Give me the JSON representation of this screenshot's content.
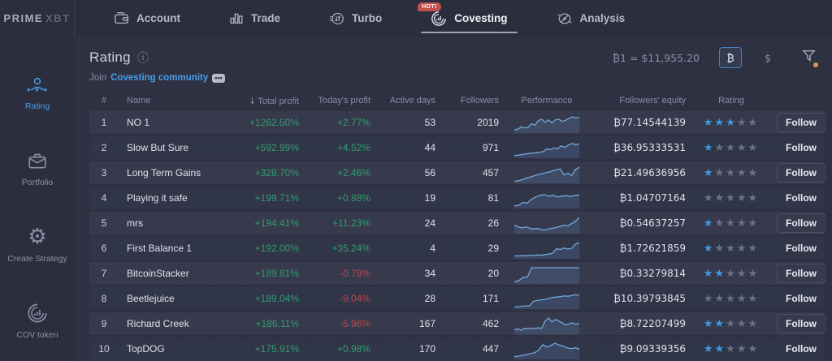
{
  "brand": {
    "name": "PRIME",
    "suffix": "XBT"
  },
  "nav": {
    "tabs": [
      {
        "label": "Account",
        "icon": "wallet-icon",
        "active": false
      },
      {
        "label": "Trade",
        "icon": "bars-icon",
        "active": false
      },
      {
        "label": "Turbo",
        "icon": "turbo-icon",
        "active": false
      },
      {
        "label": "Covesting",
        "icon": "covesting-icon",
        "active": true,
        "badge": "HOT!"
      },
      {
        "label": "Analysis",
        "icon": "compass-icon",
        "active": false
      }
    ]
  },
  "sidebar": {
    "items": [
      {
        "label": "Rating",
        "icon": "user-stars-icon",
        "active": true
      },
      {
        "label": "Portfolio",
        "icon": "briefcase-icon",
        "active": false
      },
      {
        "label": "Create Strategy",
        "icon": "gear-icon",
        "active": false
      },
      {
        "label": "COV token",
        "icon": "cov-token-icon",
        "active": false
      }
    ]
  },
  "header": {
    "title": "Rating",
    "info_icon": "ⓘ",
    "join_prefix": "Join",
    "join_link": "Covesting community",
    "rate_label": "₿1 = $11,955.20",
    "currency_btc": "₿",
    "currency_usd": "$"
  },
  "table": {
    "columns": [
      {
        "label": "#"
      },
      {
        "label": "Name"
      },
      {
        "label": "Total profit",
        "sorted": true,
        "sort_icon": "↓"
      },
      {
        "label": "Today's profit"
      },
      {
        "label": "Active days"
      },
      {
        "label": "Followers"
      },
      {
        "label": "Performance"
      },
      {
        "label": "Followers' equity"
      },
      {
        "label": "Rating"
      },
      {
        "label": ""
      }
    ],
    "follow_label": "Follow",
    "rows": [
      {
        "rank": "1",
        "name": "NO 1",
        "total_profit": "+1262.50%",
        "todays_profit": "+2.77%",
        "active_days": "53",
        "followers": "2019",
        "equity": "₿77.14544139",
        "rating": 3,
        "performance": [
          0.15,
          0.2,
          0.35,
          0.28,
          0.3,
          0.55,
          0.45,
          0.75,
          0.85,
          0.65,
          0.8,
          0.6,
          0.8,
          0.85,
          0.7,
          0.78,
          0.9,
          1.0,
          0.92,
          0.95
        ]
      },
      {
        "rank": "2",
        "name": "Slow But Sure",
        "total_profit": "+592.99%",
        "todays_profit": "+4.52%",
        "active_days": "44",
        "followers": "971",
        "equity": "₿36.95333531",
        "rating": 1,
        "performance": [
          0.12,
          0.14,
          0.18,
          0.22,
          0.25,
          0.28,
          0.3,
          0.33,
          0.38,
          0.55,
          0.5,
          0.62,
          0.55,
          0.75,
          0.65,
          0.8,
          0.9,
          0.82,
          0.88
        ]
      },
      {
        "rank": "3",
        "name": "Long Term Gains",
        "total_profit": "+328.70%",
        "todays_profit": "+2.46%",
        "active_days": "56",
        "followers": "457",
        "equity": "₿21.49636956",
        "rating": 1,
        "performance": [
          0.08,
          0.12,
          0.18,
          0.28,
          0.35,
          0.42,
          0.5,
          0.55,
          0.62,
          0.68,
          0.75,
          0.82,
          0.88,
          0.5,
          0.6,
          0.45,
          0.85,
          1.0
        ]
      },
      {
        "rank": "4",
        "name": "Playing it safe",
        "total_profit": "+199.71%",
        "todays_profit": "+0.88%",
        "active_days": "19",
        "followers": "81",
        "equity": "₿1.04707164",
        "rating": 0,
        "performance": [
          0.12,
          0.15,
          0.35,
          0.3,
          0.55,
          0.7,
          0.8,
          0.85,
          0.75,
          0.8,
          0.7,
          0.75,
          0.78,
          0.72,
          0.8,
          0.82
        ]
      },
      {
        "rank": "5",
        "name": "mrs",
        "total_profit": "+194.41%",
        "todays_profit": "+11.23%",
        "active_days": "24",
        "followers": "26",
        "equity": "₿0.54637257",
        "rating": 1,
        "performance": [
          0.5,
          0.38,
          0.32,
          0.38,
          0.3,
          0.25,
          0.28,
          0.22,
          0.18,
          0.25,
          0.3,
          0.35,
          0.42,
          0.5,
          0.45,
          0.6,
          0.75,
          1.0
        ]
      },
      {
        "rank": "6",
        "name": "First Balance 1",
        "total_profit": "+192.00%",
        "todays_profit": "+35.24%",
        "active_days": "4",
        "followers": "29",
        "equity": "₿1.72621859",
        "rating": 1,
        "performance": [
          0.15,
          0.13,
          0.16,
          0.14,
          0.18,
          0.16,
          0.2,
          0.18,
          0.22,
          0.25,
          0.3,
          0.6,
          0.55,
          0.65,
          0.58,
          0.62,
          0.9,
          1.0
        ]
      },
      {
        "rank": "7",
        "name": "BitcoinStacker",
        "total_profit": "+189.81%",
        "todays_profit": "-0.79%",
        "active_days": "34",
        "followers": "20",
        "equity": "₿0.33279814",
        "rating": 2,
        "performance": [
          0.1,
          0.15,
          0.38,
          0.38,
          1.0,
          1.0,
          1.0,
          1.0,
          1.0,
          1.0,
          1.0,
          1.0,
          1.0,
          1.0,
          1.0,
          1.0
        ]
      },
      {
        "rank": "8",
        "name": "Beetlejuice",
        "total_profit": "+189.04%",
        "todays_profit": "-9.04%",
        "active_days": "28",
        "followers": "171",
        "equity": "₿10.39793845",
        "rating": 0,
        "performance": [
          0.08,
          0.1,
          0.13,
          0.15,
          0.16,
          0.45,
          0.5,
          0.55,
          0.56,
          0.65,
          0.7,
          0.73,
          0.75,
          0.8,
          0.78,
          0.82,
          0.88,
          0.85
        ]
      },
      {
        "rank": "9",
        "name": "Richard Creek",
        "total_profit": "+186.11%",
        "todays_profit": "-5.96%",
        "active_days": "167",
        "followers": "462",
        "equity": "₿8.72207499",
        "rating": 2,
        "performance": [
          0.25,
          0.3,
          0.2,
          0.33,
          0.3,
          0.35,
          0.32,
          0.36,
          0.33,
          0.8,
          1.0,
          0.75,
          0.9,
          0.8,
          0.68,
          0.55,
          0.62,
          0.68,
          0.6,
          0.66
        ]
      },
      {
        "rank": "10",
        "name": "TopDOG",
        "total_profit": "+175.91%",
        "todays_profit": "+0.98%",
        "active_days": "170",
        "followers": "447",
        "equity": "₿9.09339356",
        "rating": 2,
        "performance": [
          0.12,
          0.16,
          0.2,
          0.26,
          0.32,
          0.38,
          0.55,
          0.9,
          0.75,
          0.85,
          1.0,
          0.88,
          0.8,
          0.7,
          0.65,
          0.7,
          0.62
        ]
      }
    ]
  },
  "colors": {
    "positive": "#2f9e6e",
    "negative": "#bf4748",
    "accent_blue": "#3d9ae2",
    "link_blue": "#4a9fe8",
    "hot_badge": "#c14f4e",
    "filter_dot": "#dd9a4b",
    "spark_line": "#73a7da",
    "spark_fill": "rgba(100,140,195,0.22)"
  }
}
